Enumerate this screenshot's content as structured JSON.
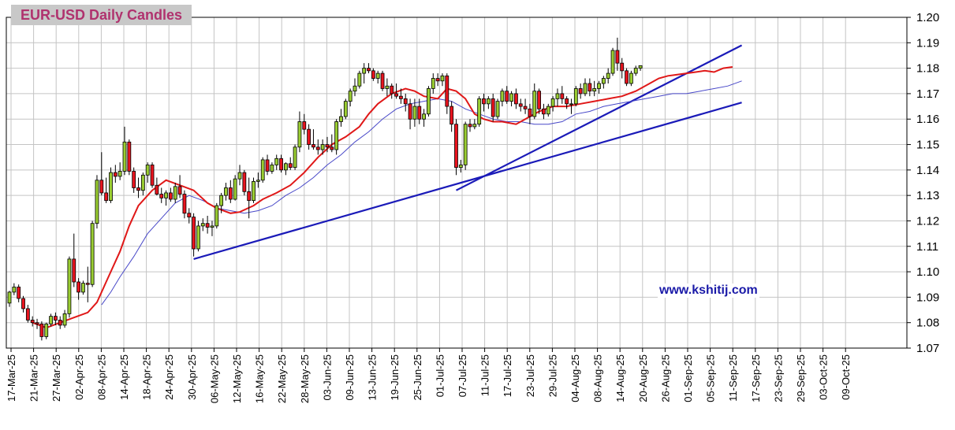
{
  "chart_data": {
    "type": "candlestick",
    "title": "EUR-USD Daily  Candles",
    "watermark": "www.kshitij.com",
    "ylim": [
      1.07,
      1.2
    ],
    "y_ticks": [
      "1.07",
      "1.08",
      "1.09",
      "1.10",
      "1.11",
      "1.12",
      "1.13",
      "1.14",
      "1.15",
      "1.16",
      "1.17",
      "1.18",
      "1.19",
      "1.20"
    ],
    "x_ticks": [
      "17-Mar-25",
      "21-Mar-25",
      "27-Mar-25",
      "02-Apr-25",
      "08-Apr-25",
      "14-Apr-25",
      "18-Apr-25",
      "24-Apr-25",
      "30-Apr-25",
      "06-May-25",
      "12-May-25",
      "16-May-25",
      "22-May-25",
      "28-May-25",
      "03-Jun-25",
      "09-Jun-25",
      "13-Jun-25",
      "19-Jun-25",
      "25-Jun-25",
      "01-Jul-25",
      "07-Jul-25",
      "11-Jul-25",
      "17-Jul-25",
      "23-Jul-25",
      "29-Jul-25",
      "04-Aug-25",
      "08-Aug-25",
      "14-Aug-25",
      "20-Aug-25",
      "26-Aug-25",
      "01-Sep-25",
      "05-Sep-25",
      "11-Sep-25",
      "17-Sep-25",
      "23-Sep-25",
      "29-Sep-25",
      "03-Oct-25",
      "09-Oct-25"
    ],
    "grid": true,
    "y_axis_side": "right",
    "up_color": "#9acd32",
    "down_color": "#e8141e",
    "ohlc": [
      [
        1.0877,
        1.0925,
        1.0862,
        1.092
      ],
      [
        1.092,
        1.0955,
        1.0908,
        1.094
      ],
      [
        1.094,
        1.095,
        1.088,
        1.0895
      ],
      [
        1.0895,
        1.0905,
        1.084,
        1.0855
      ],
      [
        1.0855,
        1.087,
        1.08,
        1.081
      ],
      [
        1.081,
        1.0825,
        1.0785,
        1.08
      ],
      [
        1.08,
        1.0815,
        1.0775,
        1.0795
      ],
      [
        1.0795,
        1.0805,
        1.073,
        1.0745
      ],
      [
        1.0745,
        1.08,
        1.0735,
        1.0795
      ],
      [
        1.0795,
        1.0835,
        1.0785,
        1.0825
      ],
      [
        1.0825,
        1.084,
        1.079,
        1.081
      ],
      [
        1.081,
        1.0825,
        1.0775,
        1.079
      ],
      [
        1.079,
        1.085,
        1.078,
        1.0835
      ],
      [
        1.0835,
        1.106,
        1.082,
        1.105
      ],
      [
        1.105,
        1.115,
        1.094,
        1.096
      ],
      [
        1.096,
        1.0975,
        1.089,
        1.092
      ],
      [
        1.092,
        1.0965,
        1.091,
        1.0955
      ],
      [
        1.0955,
        1.102,
        1.088,
        1.095
      ],
      [
        1.095,
        1.12,
        1.094,
        1.119
      ],
      [
        1.119,
        1.138,
        1.117,
        1.136
      ],
      [
        1.136,
        1.147,
        1.13,
        1.131
      ],
      [
        1.131,
        1.137,
        1.127,
        1.128
      ],
      [
        1.128,
        1.141,
        1.127,
        1.139
      ],
      [
        1.139,
        1.142,
        1.135,
        1.1375
      ],
      [
        1.1375,
        1.143,
        1.136,
        1.1395
      ],
      [
        1.1395,
        1.157,
        1.138,
        1.151
      ],
      [
        1.151,
        1.152,
        1.138,
        1.1395
      ],
      [
        1.1395,
        1.141,
        1.131,
        1.133
      ],
      [
        1.133,
        1.137,
        1.129,
        1.132
      ],
      [
        1.132,
        1.139,
        1.13,
        1.138
      ],
      [
        1.138,
        1.143,
        1.135,
        1.142
      ],
      [
        1.142,
        1.143,
        1.133,
        1.134
      ],
      [
        1.134,
        1.137,
        1.13,
        1.1305
      ],
      [
        1.1305,
        1.133,
        1.127,
        1.129
      ],
      [
        1.129,
        1.132,
        1.126,
        1.131
      ],
      [
        1.131,
        1.133,
        1.1275,
        1.1285
      ],
      [
        1.1285,
        1.135,
        1.127,
        1.1335
      ],
      [
        1.1335,
        1.138,
        1.129,
        1.1305
      ],
      [
        1.1305,
        1.132,
        1.121,
        1.123
      ],
      [
        1.123,
        1.125,
        1.119,
        1.1215
      ],
      [
        1.1215,
        1.123,
        1.106,
        1.109
      ],
      [
        1.109,
        1.12,
        1.108,
        1.118
      ],
      [
        1.118,
        1.121,
        1.116,
        1.119
      ],
      [
        1.119,
        1.122,
        1.115,
        1.1175
      ],
      [
        1.1175,
        1.12,
        1.114,
        1.118
      ],
      [
        1.118,
        1.127,
        1.117,
        1.126
      ],
      [
        1.126,
        1.131,
        1.123,
        1.13
      ],
      [
        1.13,
        1.135,
        1.128,
        1.133
      ],
      [
        1.133,
        1.136,
        1.127,
        1.1285
      ],
      [
        1.1285,
        1.138,
        1.128,
        1.1365
      ],
      [
        1.1365,
        1.142,
        1.134,
        1.139
      ],
      [
        1.139,
        1.14,
        1.13,
        1.1315
      ],
      [
        1.1315,
        1.137,
        1.121,
        1.128
      ],
      [
        1.128,
        1.137,
        1.127,
        1.1355
      ],
      [
        1.1355,
        1.139,
        1.133,
        1.136
      ],
      [
        1.136,
        1.145,
        1.135,
        1.144
      ],
      [
        1.144,
        1.146,
        1.138,
        1.1395
      ],
      [
        1.1395,
        1.143,
        1.1385,
        1.142
      ],
      [
        1.142,
        1.146,
        1.14,
        1.1445
      ],
      [
        1.1445,
        1.146,
        1.139,
        1.14
      ],
      [
        1.14,
        1.143,
        1.138,
        1.1425
      ],
      [
        1.1425,
        1.145,
        1.14,
        1.141
      ],
      [
        1.141,
        1.15,
        1.14,
        1.149
      ],
      [
        1.149,
        1.163,
        1.147,
        1.159
      ],
      [
        1.159,
        1.162,
        1.154,
        1.156
      ],
      [
        1.156,
        1.158,
        1.148,
        1.15
      ],
      [
        1.15,
        1.156,
        1.148,
        1.149
      ],
      [
        1.149,
        1.152,
        1.146,
        1.148
      ],
      [
        1.148,
        1.152,
        1.146,
        1.15
      ],
      [
        1.15,
        1.153,
        1.147,
        1.149
      ],
      [
        1.149,
        1.154,
        1.147,
        1.148
      ],
      [
        1.148,
        1.16,
        1.146,
        1.159
      ],
      [
        1.159,
        1.164,
        1.157,
        1.161
      ],
      [
        1.161,
        1.168,
        1.16,
        1.167
      ],
      [
        1.167,
        1.172,
        1.165,
        1.171
      ],
      [
        1.171,
        1.176,
        1.169,
        1.173
      ],
      [
        1.173,
        1.179,
        1.172,
        1.178
      ],
      [
        1.178,
        1.182,
        1.174,
        1.18
      ],
      [
        1.18,
        1.182,
        1.178,
        1.179
      ],
      [
        1.179,
        1.18,
        1.175,
        1.176
      ],
      [
        1.176,
        1.179,
        1.174,
        1.178
      ],
      [
        1.178,
        1.179,
        1.171,
        1.172
      ],
      [
        1.172,
        1.176,
        1.169,
        1.173
      ],
      [
        1.173,
        1.174,
        1.168,
        1.17
      ],
      [
        1.17,
        1.174,
        1.168,
        1.169
      ],
      [
        1.169,
        1.172,
        1.166,
        1.168
      ],
      [
        1.168,
        1.17,
        1.163,
        1.166
      ],
      [
        1.166,
        1.168,
        1.156,
        1.16
      ],
      [
        1.16,
        1.168,
        1.157,
        1.165
      ],
      [
        1.165,
        1.168,
        1.158,
        1.16
      ],
      [
        1.16,
        1.164,
        1.157,
        1.162
      ],
      [
        1.162,
        1.173,
        1.161,
        1.172
      ],
      [
        1.172,
        1.178,
        1.17,
        1.176
      ],
      [
        1.176,
        1.178,
        1.173,
        1.175
      ],
      [
        1.175,
        1.178,
        1.173,
        1.177
      ],
      [
        1.177,
        1.178,
        1.162,
        1.165
      ],
      [
        1.165,
        1.167,
        1.155,
        1.158
      ],
      [
        1.158,
        1.16,
        1.138,
        1.141
      ],
      [
        1.141,
        1.144,
        1.139,
        1.142
      ],
      [
        1.142,
        1.159,
        1.14,
        1.158
      ],
      [
        1.158,
        1.16,
        1.155,
        1.157
      ],
      [
        1.157,
        1.16,
        1.156,
        1.158
      ],
      [
        1.158,
        1.169,
        1.157,
        1.168
      ],
      [
        1.168,
        1.17,
        1.163,
        1.166
      ],
      [
        1.166,
        1.169,
        1.164,
        1.168
      ],
      [
        1.168,
        1.17,
        1.159,
        1.161
      ],
      [
        1.161,
        1.168,
        1.16,
        1.167
      ],
      [
        1.167,
        1.172,
        1.165,
        1.171
      ],
      [
        1.171,
        1.173,
        1.166,
        1.167
      ],
      [
        1.167,
        1.171,
        1.165,
        1.17
      ],
      [
        1.17,
        1.172,
        1.164,
        1.166
      ],
      [
        1.166,
        1.168,
        1.163,
        1.165
      ],
      [
        1.165,
        1.168,
        1.162,
        1.164
      ],
      [
        1.164,
        1.166,
        1.158,
        1.161
      ],
      [
        1.161,
        1.174,
        1.16,
        1.171
      ],
      [
        1.171,
        1.172,
        1.162,
        1.164
      ],
      [
        1.164,
        1.166,
        1.16,
        1.162
      ],
      [
        1.162,
        1.166,
        1.161,
        1.165
      ],
      [
        1.165,
        1.169,
        1.163,
        1.168
      ],
      [
        1.168,
        1.172,
        1.165,
        1.17
      ],
      [
        1.17,
        1.173,
        1.166,
        1.168
      ],
      [
        1.168,
        1.169,
        1.164,
        1.166
      ],
      [
        1.166,
        1.168,
        1.162,
        1.166
      ],
      [
        1.166,
        1.173,
        1.165,
        1.172
      ],
      [
        1.172,
        1.174,
        1.168,
        1.17
      ],
      [
        1.17,
        1.176,
        1.169,
        1.174
      ],
      [
        1.174,
        1.176,
        1.169,
        1.171
      ],
      [
        1.171,
        1.175,
        1.169,
        1.172
      ],
      [
        1.172,
        1.175,
        1.17,
        1.174
      ],
      [
        1.174,
        1.177,
        1.172,
        1.176
      ],
      [
        1.176,
        1.18,
        1.174,
        1.178
      ],
      [
        1.178,
        1.188,
        1.177,
        1.187
      ],
      [
        1.187,
        1.192,
        1.179,
        1.182
      ],
      [
        1.182,
        1.184,
        1.176,
        1.179
      ],
      [
        1.179,
        1.18,
        1.173,
        1.174
      ],
      [
        1.174,
        1.179,
        1.173,
        1.178
      ],
      [
        1.178,
        1.181,
        1.177,
        1.18
      ],
      [
        1.18,
        1.181,
        1.179,
        1.181
      ]
    ],
    "sma_fast": [
      [
        5,
        1.08
      ],
      [
        8,
        1.078
      ],
      [
        11,
        1.08
      ],
      [
        14,
        1.082
      ],
      [
        17,
        1.084
      ],
      [
        19,
        1.088
      ],
      [
        21,
        1.096
      ],
      [
        24,
        1.108
      ],
      [
        26,
        1.118
      ],
      [
        28,
        1.126
      ],
      [
        31,
        1.132
      ],
      [
        34,
        1.136
      ],
      [
        37,
        1.134
      ],
      [
        40,
        1.132
      ],
      [
        43,
        1.127
      ],
      [
        45,
        1.125
      ],
      [
        48,
        1.123
      ],
      [
        50,
        1.1235
      ],
      [
        53,
        1.126
      ],
      [
        55,
        1.1285
      ],
      [
        58,
        1.131
      ],
      [
        61,
        1.134
      ],
      [
        64,
        1.139
      ],
      [
        67,
        1.145
      ],
      [
        70,
        1.15
      ],
      [
        73,
        1.153
      ],
      [
        76,
        1.157
      ],
      [
        78,
        1.162
      ],
      [
        80,
        1.166
      ],
      [
        83,
        1.17
      ],
      [
        86,
        1.172
      ],
      [
        88,
        1.171
      ],
      [
        90,
        1.169
      ],
      [
        93,
        1.168
      ],
      [
        95,
        1.172
      ],
      [
        97,
        1.171
      ],
      [
        99,
        1.168
      ],
      [
        101,
        1.162
      ],
      [
        103,
        1.16
      ],
      [
        105,
        1.159
      ],
      [
        107,
        1.159
      ],
      [
        110,
        1.158
      ],
      [
        112,
        1.16
      ],
      [
        115,
        1.163
      ],
      [
        118,
        1.165
      ],
      [
        121,
        1.165
      ],
      [
        124,
        1.166
      ],
      [
        127,
        1.167
      ],
      [
        130,
        1.168
      ],
      [
        133,
        1.169
      ],
      [
        136,
        1.171
      ],
      [
        139,
        1.174
      ],
      [
        141,
        1.176
      ],
      [
        143,
        1.177
      ],
      [
        145,
        1.1775
      ],
      [
        147,
        1.178
      ],
      [
        149,
        1.1785
      ],
      [
        151,
        1.179
      ],
      [
        153,
        1.1785
      ],
      [
        155,
        1.18
      ],
      [
        157,
        1.1805
      ]
    ],
    "sma_slow": [
      [
        20,
        1.087
      ],
      [
        22,
        1.092
      ],
      [
        24,
        1.098
      ],
      [
        27,
        1.106
      ],
      [
        30,
        1.115
      ],
      [
        33,
        1.121
      ],
      [
        36,
        1.127
      ],
      [
        39,
        1.13
      ],
      [
        42,
        1.128
      ],
      [
        45,
        1.125
      ],
      [
        48,
        1.124
      ],
      [
        51,
        1.123
      ],
      [
        54,
        1.124
      ],
      [
        57,
        1.126
      ],
      [
        60,
        1.13
      ],
      [
        63,
        1.133
      ],
      [
        66,
        1.137
      ],
      [
        69,
        1.142
      ],
      [
        72,
        1.146
      ],
      [
        75,
        1.151
      ],
      [
        78,
        1.155
      ],
      [
        81,
        1.16
      ],
      [
        84,
        1.164
      ],
      [
        87,
        1.166
      ],
      [
        90,
        1.167
      ],
      [
        93,
        1.168
      ],
      [
        96,
        1.167
      ],
      [
        99,
        1.164
      ],
      [
        102,
        1.162
      ],
      [
        105,
        1.16
      ],
      [
        108,
        1.159
      ],
      [
        111,
        1.159
      ],
      [
        114,
        1.158
      ],
      [
        117,
        1.158
      ],
      [
        120,
        1.159
      ],
      [
        123,
        1.162
      ],
      [
        126,
        1.163
      ],
      [
        129,
        1.165
      ],
      [
        132,
        1.166
      ],
      [
        135,
        1.167
      ],
      [
        138,
        1.168
      ],
      [
        141,
        1.169
      ],
      [
        144,
        1.17
      ],
      [
        147,
        1.17
      ],
      [
        150,
        1.171
      ],
      [
        153,
        1.172
      ],
      [
        156,
        1.173
      ],
      [
        159,
        1.175
      ]
    ],
    "trendlines": [
      {
        "from": [
          40,
          1.105
        ],
        "to": [
          159,
          1.1665
        ]
      },
      {
        "from": [
          97,
          1.132
        ],
        "to": [
          159,
          1.189
        ]
      }
    ]
  }
}
